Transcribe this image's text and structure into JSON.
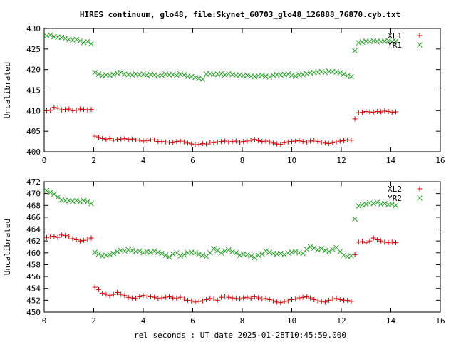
{
  "title": "HIRES continuum, glo48, file:Skynet_60703_glo48_126888_76870.cyb.txt",
  "xlabel": "rel seconds : UT date 2025-01-28T10:45:59.000",
  "colors": {
    "red": "#d00000",
    "green": "#2ca02c"
  },
  "chart_data": [
    {
      "type": "scatter",
      "ylabel": "Uncalibrated",
      "xlim": [
        0,
        16
      ],
      "ylim": [
        400,
        430
      ],
      "xticks": [
        0,
        2,
        4,
        6,
        8,
        10,
        12,
        14,
        16
      ],
      "yticks": [
        400,
        405,
        410,
        415,
        420,
        425,
        430
      ],
      "legend": "top-right",
      "series": [
        {
          "name": "XL1",
          "marker": "plus",
          "color": "#d00000",
          "x": [
            0.1,
            0.25,
            0.4,
            0.55,
            0.7,
            0.85,
            1.0,
            1.15,
            1.3,
            1.45,
            1.6,
            1.75,
            1.9,
            2.05,
            2.2,
            2.35,
            2.5,
            2.65,
            2.8,
            2.95,
            3.1,
            3.25,
            3.4,
            3.55,
            3.7,
            3.85,
            4.0,
            4.15,
            4.3,
            4.45,
            4.6,
            4.75,
            4.9,
            5.05,
            5.2,
            5.35,
            5.5,
            5.65,
            5.8,
            5.95,
            6.1,
            6.25,
            6.4,
            6.55,
            6.7,
            6.85,
            7.0,
            7.15,
            7.3,
            7.45,
            7.6,
            7.75,
            7.9,
            8.05,
            8.2,
            8.35,
            8.5,
            8.65,
            8.8,
            8.95,
            9.1,
            9.25,
            9.4,
            9.55,
            9.7,
            9.85,
            10.0,
            10.15,
            10.3,
            10.45,
            10.6,
            10.75,
            10.9,
            11.05,
            11.2,
            11.35,
            11.5,
            11.65,
            11.8,
            11.95,
            12.1,
            12.25,
            12.4,
            12.55,
            12.7,
            12.85,
            13.0,
            13.15,
            13.3,
            13.45,
            13.6,
            13.75,
            13.9,
            14.05,
            14.2
          ],
          "y": [
            410.0,
            410.1,
            410.8,
            410.6,
            410.2,
            410.3,
            410.4,
            410.0,
            410.1,
            410.4,
            410.3,
            410.2,
            410.3,
            403.8,
            403.5,
            403.2,
            403.0,
            403.2,
            402.8,
            403.0,
            403.1,
            403.2,
            403.0,
            403.1,
            402.9,
            402.8,
            402.6,
            402.7,
            402.9,
            402.9,
            402.5,
            402.5,
            402.4,
            402.3,
            402.2,
            402.5,
            402.6,
            402.4,
            402.1,
            401.9,
            401.7,
            401.8,
            402.0,
            401.9,
            402.3,
            402.2,
            402.4,
            402.5,
            402.6,
            402.4,
            402.5,
            402.6,
            402.3,
            402.5,
            402.6,
            402.8,
            403.0,
            402.7,
            402.5,
            402.6,
            402.4,
            402.1,
            401.9,
            401.8,
            402.2,
            402.4,
            402.5,
            402.6,
            402.7,
            402.5,
            402.3,
            402.6,
            402.8,
            402.5,
            402.3,
            402.1,
            402.0,
            402.2,
            402.4,
            402.6,
            402.7,
            402.9,
            402.8,
            408.0,
            409.5,
            409.6,
            409.8,
            409.7,
            409.6,
            409.8,
            409.7,
            409.9,
            409.8,
            409.6,
            409.7
          ]
        },
        {
          "name": "YR1",
          "marker": "cross",
          "color": "#2ca02c",
          "x": [
            0.1,
            0.25,
            0.4,
            0.55,
            0.7,
            0.85,
            1.0,
            1.15,
            1.3,
            1.45,
            1.6,
            1.75,
            1.9,
            2.05,
            2.2,
            2.35,
            2.5,
            2.65,
            2.8,
            2.95,
            3.1,
            3.25,
            3.4,
            3.55,
            3.7,
            3.85,
            4.0,
            4.15,
            4.3,
            4.45,
            4.6,
            4.75,
            4.9,
            5.05,
            5.2,
            5.35,
            5.5,
            5.65,
            5.8,
            5.95,
            6.1,
            6.25,
            6.4,
            6.55,
            6.7,
            6.85,
            7.0,
            7.15,
            7.3,
            7.45,
            7.6,
            7.75,
            7.9,
            8.05,
            8.2,
            8.35,
            8.5,
            8.65,
            8.8,
            8.95,
            9.1,
            9.25,
            9.4,
            9.55,
            9.7,
            9.85,
            10.0,
            10.15,
            10.3,
            10.45,
            10.6,
            10.75,
            10.9,
            11.05,
            11.2,
            11.35,
            11.5,
            11.65,
            11.8,
            11.95,
            12.1,
            12.25,
            12.4,
            12.55,
            12.7,
            12.85,
            13.0,
            13.15,
            13.3,
            13.45,
            13.6,
            13.75,
            13.9,
            14.05,
            14.2
          ],
          "y": [
            428.2,
            428.4,
            428.0,
            427.9,
            427.8,
            427.6,
            427.3,
            427.2,
            427.3,
            427.0,
            426.6,
            426.8,
            426.3,
            419.3,
            418.9,
            418.5,
            418.7,
            418.6,
            418.8,
            419.1,
            419.3,
            418.9,
            418.8,
            418.7,
            418.9,
            418.8,
            418.9,
            418.6,
            418.8,
            418.7,
            418.5,
            418.6,
            418.9,
            418.7,
            418.8,
            418.6,
            418.9,
            418.7,
            418.4,
            418.3,
            418.1,
            417.9,
            417.7,
            418.9,
            419.0,
            418.8,
            418.9,
            419.0,
            418.7,
            419.0,
            418.8,
            418.6,
            418.7,
            418.5,
            418.6,
            418.4,
            418.3,
            418.5,
            418.6,
            418.4,
            418.2,
            418.6,
            418.8,
            418.7,
            418.8,
            418.9,
            418.6,
            418.4,
            418.7,
            418.8,
            419.0,
            419.2,
            419.3,
            419.4,
            419.5,
            419.3,
            419.6,
            419.5,
            419.4,
            419.2,
            418.9,
            418.5,
            418.3,
            424.6,
            426.5,
            426.7,
            426.9,
            426.8,
            427.0,
            426.9,
            426.8,
            426.9,
            427.0,
            426.8,
            426.9
          ]
        }
      ]
    },
    {
      "type": "scatter",
      "ylabel": "Uncalibrated",
      "xlim": [
        0,
        16
      ],
      "ylim": [
        450,
        472
      ],
      "xticks": [
        0,
        2,
        4,
        6,
        8,
        10,
        12,
        14,
        16
      ],
      "yticks": [
        450,
        452,
        454,
        456,
        458,
        460,
        462,
        464,
        466,
        468,
        470,
        472
      ],
      "legend": "top-right",
      "series": [
        {
          "name": "XL2",
          "marker": "plus",
          "color": "#d00000",
          "x": [
            0.1,
            0.25,
            0.4,
            0.55,
            0.7,
            0.85,
            1.0,
            1.15,
            1.3,
            1.45,
            1.6,
            1.75,
            1.9,
            2.05,
            2.2,
            2.35,
            2.5,
            2.65,
            2.8,
            2.95,
            3.1,
            3.25,
            3.4,
            3.55,
            3.7,
            3.85,
            4.0,
            4.15,
            4.3,
            4.45,
            4.6,
            4.75,
            4.9,
            5.05,
            5.2,
            5.35,
            5.5,
            5.65,
            5.8,
            5.95,
            6.1,
            6.25,
            6.4,
            6.55,
            6.7,
            6.85,
            7.0,
            7.15,
            7.3,
            7.45,
            7.6,
            7.75,
            7.9,
            8.05,
            8.2,
            8.35,
            8.5,
            8.65,
            8.8,
            8.95,
            9.1,
            9.25,
            9.4,
            9.55,
            9.7,
            9.85,
            10.0,
            10.15,
            10.3,
            10.45,
            10.6,
            10.75,
            10.9,
            11.05,
            11.2,
            11.35,
            11.5,
            11.65,
            11.8,
            11.95,
            12.1,
            12.25,
            12.4,
            12.55,
            12.7,
            12.85,
            13.0,
            13.15,
            13.3,
            13.45,
            13.6,
            13.75,
            13.9,
            14.05,
            14.2
          ],
          "y": [
            462.6,
            462.7,
            462.8,
            462.6,
            463.0,
            462.9,
            462.7,
            462.4,
            462.2,
            462.0,
            462.1,
            462.3,
            462.5,
            454.2,
            453.8,
            453.2,
            453.0,
            452.8,
            453.0,
            453.3,
            453.0,
            452.8,
            452.5,
            452.4,
            452.3,
            452.6,
            452.8,
            452.7,
            452.6,
            452.5,
            452.3,
            452.4,
            452.5,
            452.6,
            452.4,
            452.3,
            452.5,
            452.2,
            452.0,
            451.9,
            451.7,
            451.8,
            451.9,
            452.1,
            452.3,
            452.2,
            452.0,
            452.5,
            452.7,
            452.5,
            452.4,
            452.3,
            452.2,
            452.4,
            452.5,
            452.3,
            452.6,
            452.4,
            452.2,
            452.3,
            452.1,
            451.9,
            451.7,
            451.6,
            451.8,
            451.9,
            452.1,
            452.2,
            452.4,
            452.5,
            452.6,
            452.4,
            452.1,
            451.9,
            451.8,
            451.7,
            452.0,
            452.2,
            452.3,
            452.1,
            452.0,
            452.0,
            451.8,
            459.7,
            461.8,
            461.9,
            461.7,
            462.0,
            462.5,
            462.2,
            462.0,
            461.8,
            461.7,
            461.8,
            461.7
          ]
        },
        {
          "name": "YR2",
          "marker": "cross",
          "color": "#2ca02c",
          "x": [
            0.1,
            0.25,
            0.4,
            0.55,
            0.7,
            0.85,
            1.0,
            1.15,
            1.3,
            1.45,
            1.6,
            1.75,
            1.9,
            2.05,
            2.2,
            2.35,
            2.5,
            2.65,
            2.8,
            2.95,
            3.1,
            3.25,
            3.4,
            3.55,
            3.7,
            3.85,
            4.0,
            4.15,
            4.3,
            4.45,
            4.6,
            4.75,
            4.9,
            5.05,
            5.2,
            5.35,
            5.5,
            5.65,
            5.8,
            5.95,
            6.1,
            6.25,
            6.4,
            6.55,
            6.7,
            6.85,
            7.0,
            7.15,
            7.3,
            7.45,
            7.6,
            7.75,
            7.9,
            8.05,
            8.2,
            8.35,
            8.5,
            8.65,
            8.8,
            8.95,
            9.1,
            9.25,
            9.4,
            9.55,
            9.7,
            9.85,
            10.0,
            10.15,
            10.3,
            10.45,
            10.6,
            10.75,
            10.9,
            11.05,
            11.2,
            11.35,
            11.5,
            11.65,
            11.8,
            11.95,
            12.1,
            12.25,
            12.4,
            12.55,
            12.7,
            12.85,
            13.0,
            13.15,
            13.3,
            13.45,
            13.6,
            13.75,
            13.9,
            14.05,
            14.2
          ],
          "y": [
            470.5,
            470.2,
            469.9,
            469.4,
            468.9,
            468.8,
            468.8,
            468.7,
            468.8,
            468.6,
            468.8,
            468.6,
            468.3,
            460.1,
            459.8,
            459.5,
            459.6,
            459.7,
            459.9,
            460.2,
            460.4,
            460.3,
            460.5,
            460.4,
            460.2,
            460.3,
            460.0,
            460.2,
            460.1,
            460.3,
            460.1,
            459.9,
            459.6,
            459.3,
            459.8,
            460.0,
            459.5,
            459.7,
            460.0,
            460.1,
            460.0,
            459.8,
            459.6,
            459.4,
            460.0,
            460.7,
            460.4,
            460.0,
            460.3,
            460.5,
            460.2,
            460.0,
            459.6,
            459.8,
            459.7,
            459.5,
            459.2,
            459.6,
            459.8,
            460.3,
            460.1,
            459.9,
            459.8,
            459.9,
            459.7,
            460.0,
            460.1,
            460.2,
            460.0,
            459.9,
            460.6,
            461.0,
            460.8,
            460.5,
            460.7,
            460.4,
            460.2,
            460.6,
            460.9,
            460.2,
            459.6,
            459.4,
            459.5,
            465.7,
            467.9,
            468.1,
            468.2,
            468.4,
            468.3,
            468.5,
            468.2,
            468.3,
            468.1,
            468.2,
            468.0
          ]
        }
      ]
    }
  ]
}
